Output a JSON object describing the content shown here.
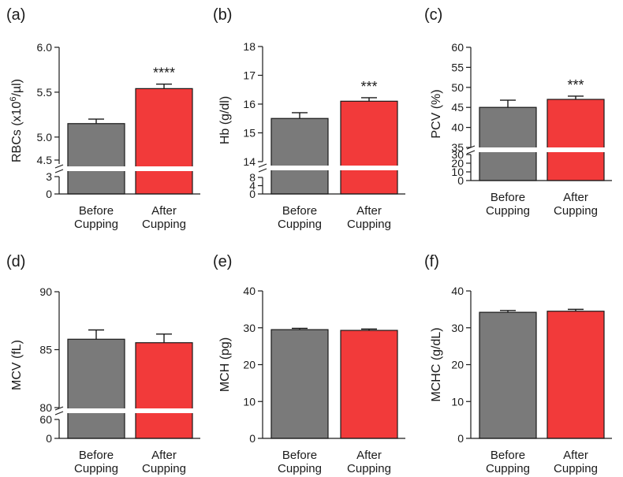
{
  "chart_data": [
    {
      "panel": "(a)",
      "type": "bar",
      "categories": [
        "Before\nCupping",
        "After\nCupping"
      ],
      "values": [
        5.15,
        5.54
      ],
      "errors": [
        0.05,
        0.05
      ],
      "colors": [
        "#7a7a7a",
        "#f23a3a"
      ],
      "ylabel": "RBCs (x10^6/µl)",
      "ylim": [
        0,
        6.0
      ],
      "axis_break": {
        "lower": [
          0,
          3
        ],
        "upper": [
          4.7,
          6.0
        ]
      },
      "yticks": [
        "0",
        "3",
        "4.5",
        "5.0",
        "5.5",
        "6.0"
      ],
      "annotation": {
        "text": "****",
        "bar": 1
      }
    },
    {
      "panel": "(b)",
      "type": "bar",
      "categories": [
        "Before\nCupping",
        "After\nCupping"
      ],
      "values": [
        15.5,
        16.1
      ],
      "errors": [
        0.2,
        0.12
      ],
      "colors": [
        "#7a7a7a",
        "#f23a3a"
      ],
      "ylabel": "Hb (g/dl)",
      "ylim": [
        0,
        18
      ],
      "axis_break": {
        "lower": [
          0,
          8
        ],
        "upper": [
          14,
          18
        ]
      },
      "yticks": [
        "0",
        "4",
        "8",
        "14",
        "15",
        "16",
        "17",
        "18"
      ],
      "annotation": {
        "text": "***",
        "bar": 1
      }
    },
    {
      "panel": "(c)",
      "type": "bar",
      "categories": [
        "Before\nCupping",
        "After\nCupping"
      ],
      "values": [
        45,
        47
      ],
      "errors": [
        1.8,
        0.8
      ],
      "colors": [
        "#7a7a7a",
        "#f23a3a"
      ],
      "ylabel": "PCV (%)",
      "ylim": [
        0,
        60
      ],
      "axis_break": {
        "lower": [
          0,
          30
        ],
        "upper": [
          35,
          60
        ]
      },
      "yticks": [
        "0",
        "10",
        "20",
        "30",
        "35",
        "40",
        "45",
        "50",
        "55",
        "60"
      ],
      "annotation": {
        "text": "***",
        "bar": 1
      }
    },
    {
      "panel": "(d)",
      "type": "bar",
      "categories": [
        "Before\nCupping",
        "After\nCupping"
      ],
      "values": [
        85.9,
        85.6
      ],
      "errors": [
        0.8,
        0.75
      ],
      "colors": [
        "#7a7a7a",
        "#f23a3a"
      ],
      "ylabel": "MCV (fL)",
      "ylim": [
        0,
        90
      ],
      "axis_break": {
        "lower": [
          0,
          60
        ],
        "upper": [
          80,
          90
        ]
      },
      "yticks": [
        "0",
        "60",
        "80",
        "85",
        "90"
      ],
      "annotation": null
    },
    {
      "panel": "(e)",
      "type": "bar",
      "categories": [
        "Before\nCupping",
        "After\nCupping"
      ],
      "values": [
        29.5,
        29.3
      ],
      "errors": [
        0.35,
        0.35
      ],
      "colors": [
        "#7a7a7a",
        "#f23a3a"
      ],
      "ylabel": "MCH (pg)",
      "ylim": [
        0,
        40
      ],
      "axis_break": null,
      "yticks": [
        "0",
        "10",
        "20",
        "30",
        "40"
      ],
      "annotation": null
    },
    {
      "panel": "(f)",
      "type": "bar",
      "categories": [
        "Before\nCupping",
        "After\nCupping"
      ],
      "values": [
        34.2,
        34.5
      ],
      "errors": [
        0.5,
        0.5
      ],
      "colors": [
        "#7a7a7a",
        "#f23a3a"
      ],
      "ylabel": "MCHC (g/dL)",
      "ylim": [
        0,
        40
      ],
      "axis_break": null,
      "yticks": [
        "0",
        "10",
        "20",
        "30",
        "40"
      ],
      "annotation": null
    }
  ]
}
